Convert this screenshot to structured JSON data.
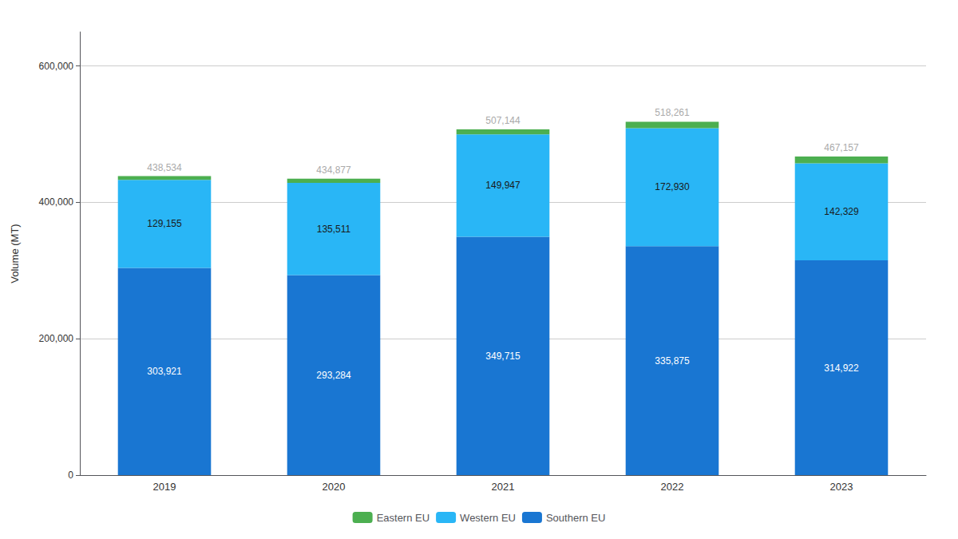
{
  "chart_data": {
    "type": "bar",
    "stacked": true,
    "categories": [
      "2019",
      "2020",
      "2021",
      "2022",
      "2023"
    ],
    "ylabel": "Volume (MT)",
    "ylim": [
      0,
      650000
    ],
    "yticks": [
      0,
      {
        "value": 200000,
        "label": "200,000"
      },
      {
        "value": 400000,
        "label": "400,000"
      },
      {
        "value": 600000,
        "label": "600,000"
      }
    ],
    "grid": true,
    "legend": "bottom",
    "series": [
      {
        "name": "Southern EU",
        "color": "#1976D2",
        "values": [
          303921,
          293284,
          349715,
          335875,
          314922
        ],
        "data_labels": true,
        "value_labels": [
          "303,921",
          "293,284",
          "349,715",
          "335,875",
          "314,922"
        ]
      },
      {
        "name": "Western EU",
        "color": "#29B6F6",
        "values": [
          129155,
          135511,
          149947,
          172930,
          142329
        ],
        "data_labels": true,
        "value_labels": [
          "129,155",
          "135,511",
          "149,947",
          "172,930",
          "142,329"
        ]
      },
      {
        "name": "Eastern EU",
        "color": "#4CAF50",
        "values": [
          5458,
          6082,
          7482,
          9456,
          9906
        ],
        "data_labels": false
      }
    ],
    "totals": [
      438534,
      434877,
      507144,
      518261,
      467157
    ],
    "total_labels": [
      "438,534",
      "434,877",
      "507,144",
      "518,261",
      "467,157"
    ]
  }
}
